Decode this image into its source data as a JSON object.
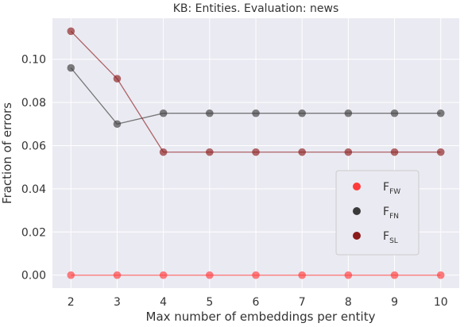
{
  "chart_data": {
    "type": "line",
    "title": "KB: Entities. Evaluation: news",
    "xlabel": "Max number of embeddings per entity",
    "ylabel": "Fraction of errors",
    "x": [
      2,
      3,
      4,
      5,
      6,
      7,
      8,
      9,
      10
    ],
    "xlim": [
      1.6,
      10.4
    ],
    "ylim": [
      -0.006,
      0.119
    ],
    "xticks": [
      "2",
      "3",
      "4",
      "5",
      "6",
      "7",
      "8",
      "9",
      "10"
    ],
    "yticks": [
      "0.00",
      "0.02",
      "0.04",
      "0.06",
      "0.08",
      "0.10"
    ],
    "ytick_values": [
      0.0,
      0.02,
      0.04,
      0.06,
      0.08,
      0.1
    ],
    "grid": true,
    "legend_position": "lower-right",
    "series": [
      {
        "name": "F",
        "subscript": "FW",
        "color": "#ff3a3a",
        "values": [
          0,
          0,
          0,
          0,
          0,
          0,
          0,
          0,
          0
        ]
      },
      {
        "name": "F",
        "subscript": "FN",
        "color": "#3a3a3a",
        "values": [
          0.096,
          0.07,
          0.075,
          0.075,
          0.075,
          0.075,
          0.075,
          0.075,
          0.075
        ]
      },
      {
        "name": "F",
        "subscript": "SL",
        "color": "#8b1a1a",
        "values": [
          0.113,
          0.091,
          0.057,
          0.057,
          0.057,
          0.057,
          0.057,
          0.057,
          0.057
        ]
      }
    ]
  }
}
